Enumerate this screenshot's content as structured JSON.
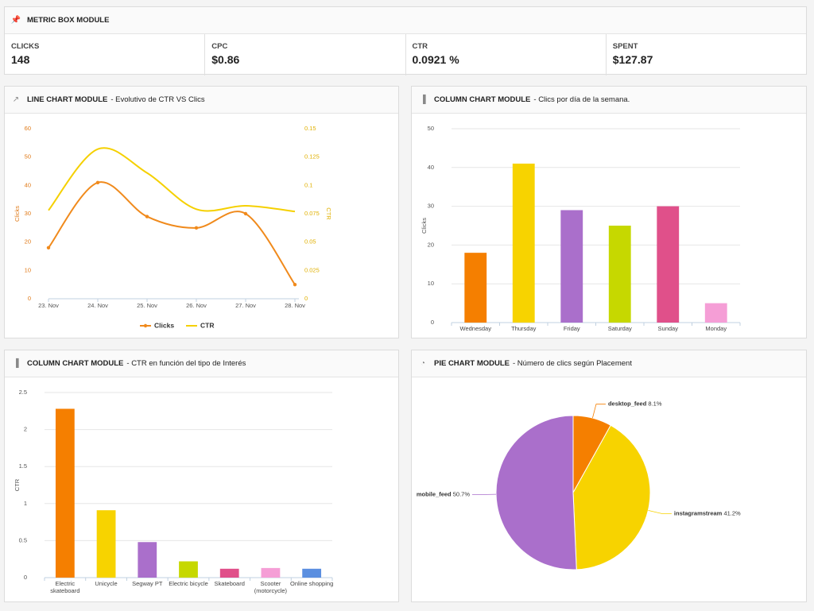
{
  "metric_box": {
    "title": "METRIC BOX MODULE",
    "metrics": [
      {
        "label": "CLICKS",
        "value": "148"
      },
      {
        "label": "CPC",
        "value": "$0.86"
      },
      {
        "label": "CTR",
        "value": "0.0921 %"
      },
      {
        "label": "SPENT",
        "value": "$127.87"
      }
    ]
  },
  "chart_data": [
    {
      "type": "line",
      "title": "LINE CHART MODULE",
      "subtitle": "- Evolutivo de CTR VS Clics",
      "categories": [
        "23. Nov",
        "24. Nov",
        "25. Nov",
        "26. Nov",
        "27. Nov",
        "28. Nov"
      ],
      "series": [
        {
          "name": "Clicks",
          "color": "#f08a1c",
          "values": [
            18,
            41,
            29,
            25,
            30,
            5
          ]
        },
        {
          "name": "CTR",
          "color": "#f5d000",
          "axis": "y2",
          "values": [
            0.078,
            0.132,
            0.111,
            0.079,
            0.082,
            0.077
          ]
        }
      ],
      "ylim": [
        0,
        60
      ],
      "yticks": [
        0,
        10,
        20,
        30,
        40,
        50,
        60
      ],
      "y2lim": [
        0,
        0.15
      ],
      "y2ticks": [
        0,
        0.025,
        0.05,
        0.075,
        0.1,
        0.125,
        0.15
      ],
      "ylabel": "Clicks",
      "y2label": "CTR",
      "grid": false
    },
    {
      "type": "bar",
      "title": "COLUMN CHART MODULE",
      "subtitle": "- Clics por día de la semana.",
      "categories": [
        "Wednesday",
        "Thursday",
        "Friday",
        "Saturday",
        "Sunday",
        "Monday"
      ],
      "values": [
        18,
        41,
        29,
        25,
        30,
        5
      ],
      "colors": [
        "#f57f00",
        "#f7d300",
        "#aa6fcb",
        "#c6d800",
        "#e0508a",
        "#f59ed6"
      ],
      "ylim": [
        0,
        50
      ],
      "yticks": [
        0,
        10,
        20,
        30,
        40,
        50
      ],
      "ylabel": "Clicks",
      "grid": true
    },
    {
      "type": "bar",
      "title": "COLUMN CHART MODULE",
      "subtitle": "- CTR en función del tipo de Interés",
      "categories": [
        "Electric skateboard",
        "Unicycle",
        "Segway PT",
        "Electric bicycle",
        "Skateboard",
        "Scooter (motorcycle)",
        "Online shopping"
      ],
      "values": [
        2.28,
        0.91,
        0.48,
        0.22,
        0.12,
        0.13,
        0.12
      ],
      "colors": [
        "#f57f00",
        "#f7d300",
        "#aa6fcb",
        "#c6d800",
        "#e0508a",
        "#f59ed6",
        "#5b8fe0"
      ],
      "ylim": [
        0,
        2.5
      ],
      "yticks": [
        0,
        0.5,
        1,
        1.5,
        2,
        2.5
      ],
      "ylabel": "CTR",
      "grid": true
    },
    {
      "type": "pie",
      "title": "PIE CHART MODULE",
      "subtitle": "- Número de clics según Placement",
      "categories": [
        "desktop_feed",
        "instagramstream",
        "mobile_feed"
      ],
      "values": [
        8.1,
        41.2,
        50.7
      ],
      "value_labels": [
        "8.1%",
        "41.2%",
        "50.7%"
      ],
      "colors": [
        "#f57f00",
        "#f7d300",
        "#aa6fcb"
      ]
    }
  ]
}
